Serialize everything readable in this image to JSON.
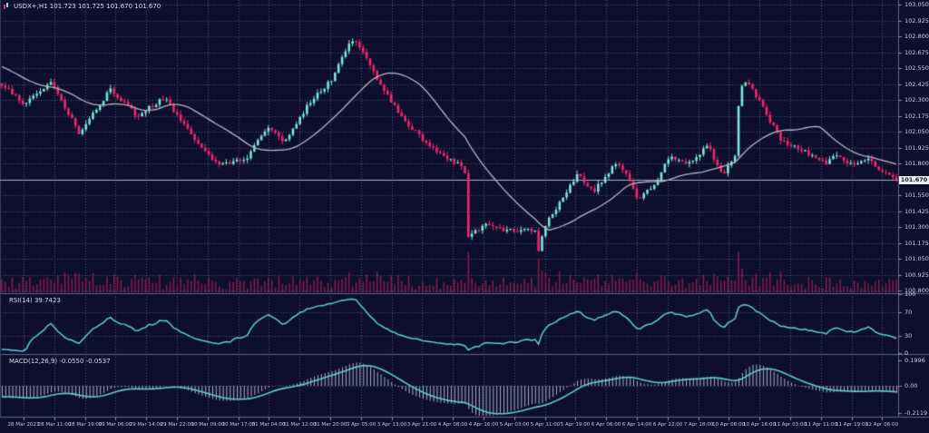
{
  "header": {
    "title": "USDX+,H1 101.723 101.725 101.670 101.670"
  },
  "panels": {
    "rsi": {
      "label": "RSI(14) 39.7423"
    },
    "macd": {
      "label": "MACD(12,26,9) -0.0550 -0.0537"
    }
  },
  "price_axis": {
    "labels": [
      "103.050",
      "102.925",
      "102.800",
      "102.675",
      "102.550",
      "102.425",
      "102.300",
      "102.175",
      "102.050",
      "101.925",
      "101.800",
      "101.550",
      "101.425",
      "101.300",
      "101.175",
      "101.050",
      "100.925",
      "100.800"
    ],
    "current": "101.670"
  },
  "rsi_axis": {
    "labels": [
      "100",
      "70",
      "30",
      "0"
    ]
  },
  "macd_axis": {
    "labels": [
      "0.1996",
      "0.00",
      "-0.2119"
    ]
  },
  "time_axis": {
    "labels": [
      "28 Mar 2023",
      "28 Mar 11:00",
      "28 Mar 19:00",
      "29 Mar 06:00",
      "29 Mar 14:00",
      "29 Mar 22:00",
      "30 Mar 09:00",
      "30 Mar 17:00",
      "31 Mar 04:00",
      "31 Mar 12:00",
      "31 Mar 20:00",
      "3 Apr 05:00",
      "3 Apr 13:00",
      "3 Apr 21:00",
      "4 Apr 08:00",
      "4 Apr 16:00",
      "5 Apr 03:00",
      "5 Apr 11:00",
      "5 Apr 19:00",
      "6 Apr 06:00",
      "6 Apr 14:00",
      "6 Apr 22:00",
      "7 Apr 18:00",
      "10 Apr 08:00",
      "10 Apr 16:00",
      "11 Apr 03:00",
      "11 Apr 11:00",
      "11 Apr 19:00",
      "12 Apr 06:00"
    ]
  },
  "colors": {
    "background": "#0e0f2c",
    "bull": "#79e8d9",
    "bear": "#f2286e",
    "volume": "#8f1c50",
    "ma_line": "#b6b6c2",
    "indicator_line": "#5bced4",
    "histogram": "#a9aecd",
    "grid": "#4c5173",
    "separator": "#62678a",
    "axis_text": "#ccd1e6",
    "price_line": "#a9adc4",
    "tag_bg": "#eceef4",
    "tag_text": "#14142a"
  },
  "chart_data": {
    "type": "candlestick",
    "symbol": "USDX+",
    "timeframe": "H1",
    "quote": {
      "open": 101.723,
      "high": 101.725,
      "low": 101.67,
      "close": 101.67
    },
    "bars": 256,
    "ylim": [
      100.786,
      103.086
    ],
    "price_anchors": [
      [
        -0.16,
        103.0
      ],
      [
        -0.06,
        102.62
      ],
      [
        0.0,
        102.44
      ],
      [
        0.03,
        102.26
      ],
      [
        0.058,
        102.45
      ],
      [
        0.09,
        102.04
      ],
      [
        0.125,
        102.38
      ],
      [
        0.155,
        102.17
      ],
      [
        0.185,
        102.32
      ],
      [
        0.215,
        102.02
      ],
      [
        0.245,
        101.78
      ],
      [
        0.275,
        101.83
      ],
      [
        0.3,
        102.1
      ],
      [
        0.32,
        101.97
      ],
      [
        0.345,
        102.26
      ],
      [
        0.37,
        102.45
      ],
      [
        0.392,
        102.77
      ],
      [
        0.402,
        102.73
      ],
      [
        0.425,
        102.43
      ],
      [
        0.448,
        102.18
      ],
      [
        0.468,
        102.02
      ],
      [
        0.49,
        101.88
      ],
      [
        0.508,
        101.8
      ],
      [
        0.519,
        101.79
      ],
      [
        0.523,
        101.22
      ],
      [
        0.545,
        101.32
      ],
      [
        0.568,
        101.27
      ],
      [
        0.598,
        101.28
      ],
      [
        0.602,
        101.08
      ],
      [
        0.607,
        101.3
      ],
      [
        0.622,
        101.45
      ],
      [
        0.645,
        101.71
      ],
      [
        0.663,
        101.58
      ],
      [
        0.687,
        101.8
      ],
      [
        0.7,
        101.73
      ],
      [
        0.712,
        101.5
      ],
      [
        0.73,
        101.63
      ],
      [
        0.748,
        101.86
      ],
      [
        0.768,
        101.8
      ],
      [
        0.79,
        101.94
      ],
      [
        0.806,
        101.71
      ],
      [
        0.82,
        101.84
      ],
      [
        0.826,
        102.4
      ],
      [
        0.832,
        102.44
      ],
      [
        0.842,
        102.36
      ],
      [
        0.856,
        102.18
      ],
      [
        0.87,
        102.0
      ],
      [
        0.886,
        101.93
      ],
      [
        0.905,
        101.87
      ],
      [
        0.92,
        101.8
      ],
      [
        0.935,
        101.87
      ],
      [
        0.952,
        101.78
      ],
      [
        0.968,
        101.83
      ],
      [
        0.985,
        101.74
      ],
      [
        1.0,
        101.67
      ]
    ],
    "indicators": {
      "moving_average": {
        "type": "SMA",
        "period": 24
      },
      "rsi": {
        "period": 14,
        "value": 39.7423,
        "levels": [
          70,
          30
        ],
        "range": [
          0,
          100
        ]
      },
      "macd": {
        "fast": 12,
        "slow": 26,
        "signal": 9,
        "macd_value": -0.055,
        "signal_value": -0.0537,
        "range": [
          -0.2119,
          0.1996
        ]
      },
      "volume": true
    }
  }
}
